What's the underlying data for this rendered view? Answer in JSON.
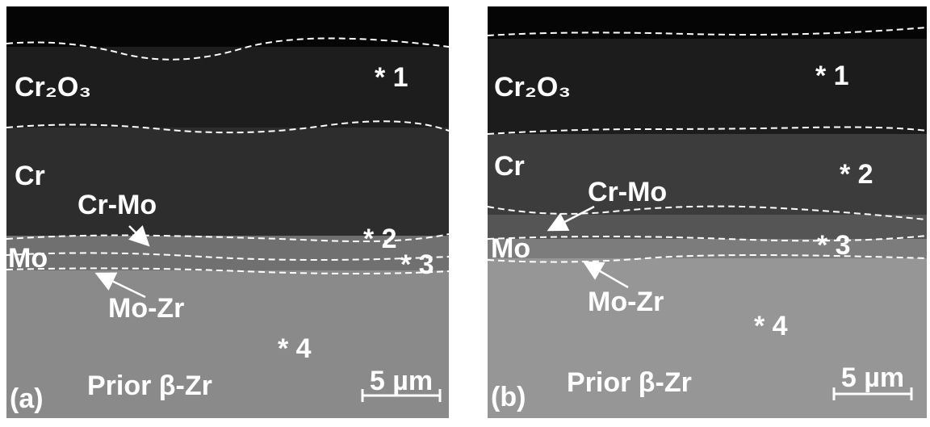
{
  "panels": [
    {
      "label": "(a)",
      "layers": {
        "oxide": "Cr₂O₃",
        "cr": "Cr",
        "crmo": "Cr-Mo",
        "mo": "Mo",
        "mozr": "Mo-Zr",
        "zr": "Prior β-Zr"
      },
      "points": [
        "* 1",
        "* 2",
        "* 3",
        "* 4"
      ],
      "scale_bar": "5 µm"
    },
    {
      "label": "(b)",
      "layers": {
        "oxide": "Cr₂O₃",
        "cr": "Cr",
        "crmo": "Cr-Mo",
        "mo": "Mo",
        "mozr": "Mo-Zr",
        "zr": "Prior β-Zr"
      },
      "points": [
        "* 1",
        "* 2",
        "* 3",
        "* 4"
      ],
      "scale_bar": "5 µm"
    }
  ]
}
